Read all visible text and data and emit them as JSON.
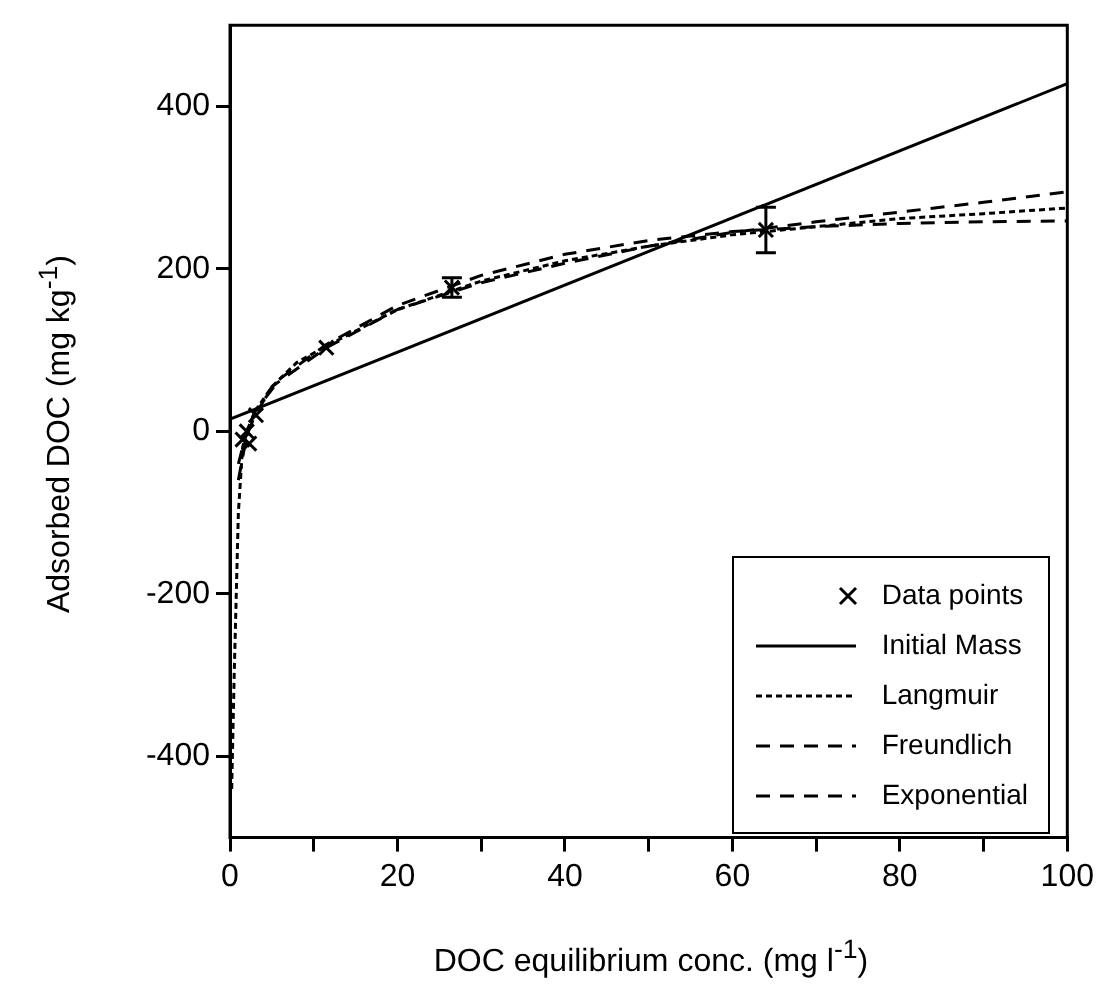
{
  "chart_data": {
    "type": "line",
    "xlabel": "DOC equilibrium conc. (mg l$^{-1}$)",
    "ylabel": "Adsorbed DOC (mg kg$^{-1}$)",
    "xlim": [
      0,
      100
    ],
    "xticks": [
      0,
      {
        "value": 10,
        "label": null
      },
      20,
      {
        "value": 30,
        "label": null
      },
      40,
      {
        "value": 50,
        "label": null
      },
      60,
      {
        "value": 70,
        "label": null
      },
      80,
      {
        "value": 90,
        "label": null
      },
      100
    ],
    "ylim": [
      -500,
      500
    ],
    "yticks": [
      -400,
      -200,
      0,
      200,
      400
    ],
    "grid": false,
    "legend": "bottom right",
    "series": [
      {
        "name": "Data points",
        "type": "scatter",
        "marker": "cross",
        "color": "#000000",
        "x": [
          1.5,
          2.0,
          2.3,
          3.1,
          11.5,
          26.5,
          64
        ],
        "values": [
          -10,
          0,
          -15,
          20,
          103,
          177,
          248
        ],
        "errors": [
          null,
          null,
          null,
          null,
          null,
          12,
          28
        ]
      },
      {
        "name": "Initial Mass",
        "type": "line",
        "line_style": "solid",
        "color": "#000000",
        "x": [
          0,
          100
        ],
        "values": [
          15,
          428
        ]
      },
      {
        "name": "Langmuir",
        "type": "line",
        "line_style": "dotted",
        "color": "#000000",
        "x": [
          0.2,
          0.5,
          1,
          1.5,
          2,
          3,
          5,
          8,
          11.5,
          20,
          30,
          40,
          50,
          60,
          70,
          80,
          90,
          100
        ],
        "values": [
          -440,
          -300,
          -100,
          -20,
          0,
          25,
          55,
          85,
          105,
          150,
          185,
          210,
          228,
          242,
          252,
          262,
          268,
          275
        ]
      },
      {
        "name": "Freundlich",
        "type": "line",
        "line_style": "dashed",
        "color": "#000000",
        "x": [
          1,
          2,
          3,
          5,
          11.5,
          20,
          30,
          40,
          50,
          60,
          70,
          80,
          90,
          100
        ],
        "values": [
          -60,
          -5,
          20,
          55,
          103,
          150,
          183,
          207,
          228,
          245,
          258,
          270,
          282,
          295
        ]
      },
      {
        "name": "Exponential",
        "type": "line",
        "line_style": "dashed",
        "color": "#000000",
        "x": [
          1,
          2,
          3,
          6,
          11.5,
          20,
          30,
          40,
          50,
          60,
          70,
          80,
          90,
          100
        ],
        "values": [
          -40,
          0,
          25,
          65,
          107,
          155,
          192,
          218,
          235,
          246,
          252,
          256,
          258,
          259
        ]
      }
    ]
  }
}
